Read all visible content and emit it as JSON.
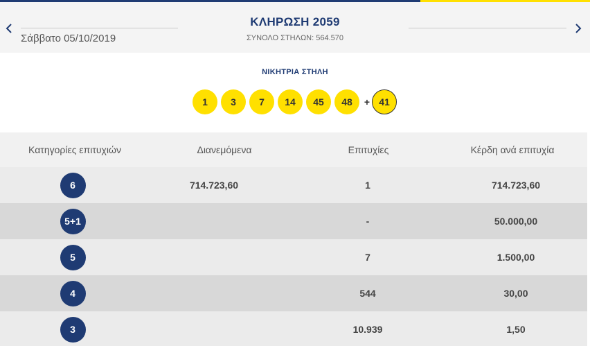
{
  "header": {
    "date": "Σάββατο 05/10/2019",
    "draw_title": "ΚΛΗΡΩΣΗ 2059",
    "total_columns": "ΣΥΝΟΛΟ ΣΤΗΛΩΝ: 564.570"
  },
  "winning": {
    "label": "ΝΙΚΗΤΡΙΑ ΣΤΗΛΗ",
    "numbers": [
      "1",
      "3",
      "7",
      "14",
      "45",
      "48"
    ],
    "plus": "+",
    "bonus": "41"
  },
  "table": {
    "headers": [
      "Κατηγορίες επιτυχιών",
      "Διανεμόμενα",
      "Επιτυχίες",
      "Κέρδη ανά επιτυχία"
    ],
    "rows": [
      {
        "category": "6",
        "distributed": "714.723,60",
        "winners": "1",
        "prize": "714.723,60"
      },
      {
        "category": "5+1",
        "distributed": "",
        "winners": "-",
        "prize": "50.000,00"
      },
      {
        "category": "5",
        "distributed": "",
        "winners": "7",
        "prize": "1.500,00"
      },
      {
        "category": "4",
        "distributed": "",
        "winners": "544",
        "prize": "30,00"
      },
      {
        "category": "3",
        "distributed": "",
        "winners": "10.939",
        "prize": "1,50"
      }
    ]
  },
  "colors": {
    "navy": "#1f3b73",
    "yellow": "#ffe000"
  },
  "icons": {
    "prev": "chevron-left-icon",
    "next": "chevron-right-icon"
  }
}
